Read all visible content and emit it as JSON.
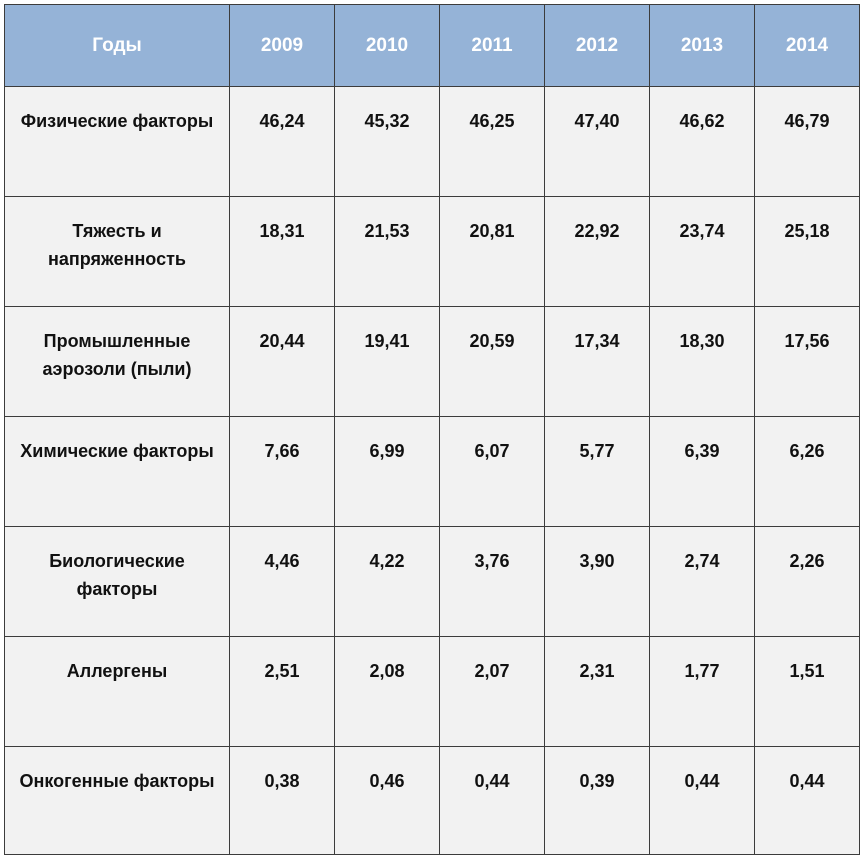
{
  "header": {
    "label": "Годы",
    "years": [
      "2009",
      "2010",
      "2011",
      "2012",
      "2013",
      "2014"
    ]
  },
  "rows": [
    {
      "label": "Физические факторы",
      "values": [
        "46,24",
        "45,32",
        "46,25",
        "47,40",
        "46,62",
        "46,79"
      ]
    },
    {
      "label": "Тяжесть и напряженность",
      "values": [
        "18,31",
        "21,53",
        "20,81",
        "22,92",
        "23,74",
        "25,18"
      ]
    },
    {
      "label": "Промышленные аэрозоли (пыли)",
      "values": [
        "20,44",
        "19,41",
        "20,59",
        "17,34",
        "18,30",
        "17,56"
      ]
    },
    {
      "label": "Химические факторы",
      "values": [
        "7,66",
        "6,99",
        "6,07",
        "5,77",
        "6,39",
        "6,26"
      ]
    },
    {
      "label": "Биологические факторы",
      "values": [
        "4,46",
        "4,22",
        "3,76",
        "3,90",
        "2,74",
        "2,26"
      ]
    },
    {
      "label": "Аллергены",
      "values": [
        "2,51",
        "2,08",
        "2,07",
        "2,31",
        "1,77",
        "1,51"
      ]
    },
    {
      "label": "Онкогенные факторы",
      "values": [
        "0,38",
        "0,46",
        "0,44",
        "0,39",
        "0,44",
        "0,44"
      ]
    }
  ],
  "colors": {
    "header_background": "#95b3d7",
    "header_text": "#ffffff",
    "cell_background": "#f2f2f2",
    "border": "#3c3c3c"
  }
}
